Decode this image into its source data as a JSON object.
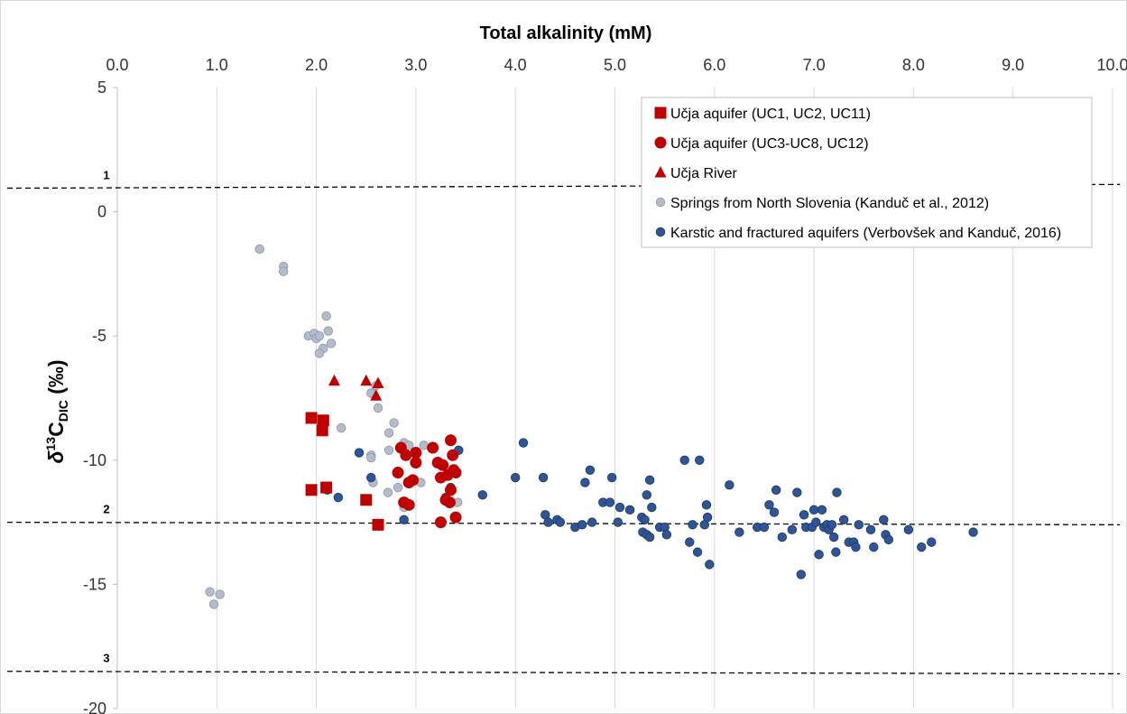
{
  "chart_data": {
    "type": "scatter",
    "title": "",
    "xlabel": "Total alkalinity (mM)",
    "ylabel_main": "δ",
    "ylabel_sup": "13",
    "ylabel_sym": "C",
    "ylabel_sub": "DIC",
    "ylabel_unit": " (‰)",
    "xlim": [
      0,
      10
    ],
    "ylim": [
      -20,
      5
    ],
    "x_axis_position": "top",
    "grid": "vertical",
    "legend_placement": "top-right",
    "xticks": [
      {
        "v": 0,
        "label": "0.0"
      },
      {
        "v": 1,
        "label": "1.0"
      },
      {
        "v": 2,
        "label": "2.0"
      },
      {
        "v": 3,
        "label": "3.0"
      },
      {
        "v": 4,
        "label": "4.0"
      },
      {
        "v": 5,
        "label": "5.0"
      },
      {
        "v": 6,
        "label": "6.0"
      },
      {
        "v": 7,
        "label": "7.0"
      },
      {
        "v": 8,
        "label": "8.0"
      },
      {
        "v": 9,
        "label": "9.0"
      },
      {
        "v": 10,
        "label": "10.0"
      }
    ],
    "yticks": [
      {
        "v": 5,
        "label": "5"
      },
      {
        "v": 0,
        "label": "0"
      },
      {
        "v": -5,
        "label": "-5"
      },
      {
        "v": -10,
        "label": "-10"
      },
      {
        "v": -15,
        "label": "-15"
      },
      {
        "v": -20,
        "label": "-20"
      }
    ],
    "reference_lines": [
      {
        "label": "1",
        "y_start": 0.95,
        "y_end": 1.1
      },
      {
        "label": "2",
        "y_start": -12.5,
        "y_end": -12.6
      },
      {
        "label": "3",
        "y_start": -18.5,
        "y_end": -18.6
      }
    ],
    "series": [
      {
        "name": "Učja aquifer (UC1, UC2, UC11)",
        "marker": "square",
        "color": "#c00000",
        "points": [
          [
            1.95,
            -8.3
          ],
          [
            2.07,
            -8.4
          ],
          [
            2.06,
            -8.8
          ],
          [
            1.95,
            -11.2
          ],
          [
            2.1,
            -11.1
          ],
          [
            2.5,
            -11.6
          ],
          [
            2.62,
            -12.6
          ]
        ]
      },
      {
        "name": "Učja aquifer (UC3-UC8, UC12)",
        "marker": "circle",
        "color": "#c00000",
        "points": [
          [
            2.85,
            -9.5
          ],
          [
            2.9,
            -9.8
          ],
          [
            3.0,
            -9.7
          ],
          [
            3.0,
            -10.1
          ],
          [
            2.82,
            -10.5
          ],
          [
            2.93,
            -10.9
          ],
          [
            2.97,
            -10.8
          ],
          [
            2.88,
            -11.7
          ],
          [
            2.93,
            -11.8
          ],
          [
            3.17,
            -9.5
          ],
          [
            3.22,
            -10.1
          ],
          [
            3.27,
            -10.2
          ],
          [
            3.25,
            -10.7
          ],
          [
            3.35,
            -9.2
          ],
          [
            3.37,
            -9.8
          ],
          [
            3.38,
            -10.4
          ],
          [
            3.4,
            -10.5
          ],
          [
            3.32,
            -10.6
          ],
          [
            3.35,
            -11.2
          ],
          [
            3.3,
            -11.6
          ],
          [
            3.34,
            -11.7
          ],
          [
            3.4,
            -12.3
          ],
          [
            3.25,
            -12.5
          ]
        ]
      },
      {
        "name": "Učja River",
        "marker": "triangle",
        "color": "#c00000",
        "points": [
          [
            2.18,
            -6.8
          ],
          [
            2.5,
            -6.8
          ],
          [
            2.62,
            -6.9
          ],
          [
            2.6,
            -7.4
          ]
        ]
      },
      {
        "name": "Springs from North Slovenia (Kanduč et al., 2012)",
        "marker": "circle",
        "color": "#b4bccc",
        "points": [
          [
            1.43,
            -1.5
          ],
          [
            1.67,
            -2.2
          ],
          [
            1.67,
            -2.4
          ],
          [
            2.1,
            -4.2
          ],
          [
            2.12,
            -4.8
          ],
          [
            1.92,
            -5.0
          ],
          [
            1.98,
            -4.9
          ],
          [
            2.0,
            -5.1
          ],
          [
            2.03,
            -5.0
          ],
          [
            2.07,
            -5.5
          ],
          [
            2.03,
            -5.7
          ],
          [
            2.15,
            -5.3
          ],
          [
            2.55,
            -7.3
          ],
          [
            2.6,
            -7.0
          ],
          [
            2.62,
            -7.9
          ],
          [
            2.25,
            -8.7
          ],
          [
            2.78,
            -8.5
          ],
          [
            2.73,
            -8.9
          ],
          [
            2.88,
            -9.3
          ],
          [
            2.93,
            -9.4
          ],
          [
            2.73,
            -9.6
          ],
          [
            3.08,
            -9.4
          ],
          [
            2.55,
            -9.8
          ],
          [
            2.55,
            -9.9
          ],
          [
            3.05,
            -10.9
          ],
          [
            2.57,
            -10.9
          ],
          [
            2.72,
            -11.3
          ],
          [
            2.82,
            -11.1
          ],
          [
            3.42,
            -11.7
          ],
          [
            2.88,
            -11.9
          ],
          [
            0.93,
            -15.3
          ],
          [
            1.03,
            -15.4
          ],
          [
            0.97,
            -15.8
          ]
        ]
      },
      {
        "name": "Karstic and fractured aquifers (Verbovšek and Kanduč, 2016)",
        "marker": "circle",
        "color": "#2f5597",
        "points": [
          [
            2.43,
            -9.7
          ],
          [
            2.22,
            -11.5
          ],
          [
            2.11,
            -11.2
          ],
          [
            2.55,
            -10.7
          ],
          [
            2.88,
            -12.4
          ],
          [
            3.43,
            -9.6
          ],
          [
            3.67,
            -11.4
          ],
          [
            3.35,
            -11.1
          ],
          [
            3.3,
            -11.5
          ],
          [
            4.0,
            -10.7
          ],
          [
            4.08,
            -9.3
          ],
          [
            4.28,
            -10.7
          ],
          [
            4.3,
            -12.2
          ],
          [
            4.33,
            -12.5
          ],
          [
            4.42,
            -12.4
          ],
          [
            4.45,
            -12.5
          ],
          [
            4.6,
            -12.7
          ],
          [
            4.67,
            -12.6
          ],
          [
            4.7,
            -10.9
          ],
          [
            4.75,
            -10.4
          ],
          [
            4.77,
            -12.5
          ],
          [
            4.88,
            -11.7
          ],
          [
            4.95,
            -11.7
          ],
          [
            4.97,
            -10.7
          ],
          [
            5.03,
            -12.5
          ],
          [
            5.05,
            -11.9
          ],
          [
            5.15,
            -12.0
          ],
          [
            5.27,
            -12.3
          ],
          [
            5.3,
            -12.4
          ],
          [
            5.28,
            -12.9
          ],
          [
            5.32,
            -13.0
          ],
          [
            5.32,
            -11.4
          ],
          [
            5.35,
            -10.8
          ],
          [
            5.37,
            -11.9
          ],
          [
            5.35,
            -13.1
          ],
          [
            5.45,
            -12.7
          ],
          [
            5.5,
            -12.7
          ],
          [
            5.52,
            -13.0
          ],
          [
            5.7,
            -10.0
          ],
          [
            5.75,
            -13.3
          ],
          [
            5.78,
            -12.6
          ],
          [
            5.83,
            -13.7
          ],
          [
            5.85,
            -10.0
          ],
          [
            5.9,
            -12.6
          ],
          [
            5.92,
            -11.8
          ],
          [
            5.93,
            -12.3
          ],
          [
            5.95,
            -14.2
          ],
          [
            6.15,
            -11.0
          ],
          [
            6.25,
            -12.9
          ],
          [
            6.43,
            -12.7
          ],
          [
            6.5,
            -12.7
          ],
          [
            6.55,
            -11.8
          ],
          [
            6.6,
            -12.1
          ],
          [
            6.62,
            -11.2
          ],
          [
            6.68,
            -13.1
          ],
          [
            6.78,
            -12.8
          ],
          [
            6.83,
            -11.3
          ],
          [
            6.87,
            -14.6
          ],
          [
            6.9,
            -12.2
          ],
          [
            6.92,
            -12.7
          ],
          [
            6.98,
            -12.7
          ],
          [
            7.0,
            -12.0
          ],
          [
            7.02,
            -12.5
          ],
          [
            7.05,
            -13.8
          ],
          [
            7.08,
            -12.0
          ],
          [
            7.1,
            -12.7
          ],
          [
            7.13,
            -12.6
          ],
          [
            7.15,
            -12.8
          ],
          [
            7.18,
            -12.6
          ],
          [
            7.2,
            -13.1
          ],
          [
            7.22,
            -13.7
          ],
          [
            7.23,
            -11.3
          ],
          [
            7.3,
            -12.4
          ],
          [
            7.35,
            -13.3
          ],
          [
            7.4,
            -13.3
          ],
          [
            7.42,
            -13.5
          ],
          [
            7.45,
            -12.6
          ],
          [
            7.57,
            -12.8
          ],
          [
            7.6,
            -13.5
          ],
          [
            7.7,
            -12.4
          ],
          [
            7.72,
            -13.0
          ],
          [
            7.75,
            -13.2
          ],
          [
            7.95,
            -12.8
          ],
          [
            8.08,
            -13.5
          ],
          [
            8.18,
            -13.3
          ],
          [
            8.6,
            -12.9
          ]
        ]
      }
    ]
  }
}
